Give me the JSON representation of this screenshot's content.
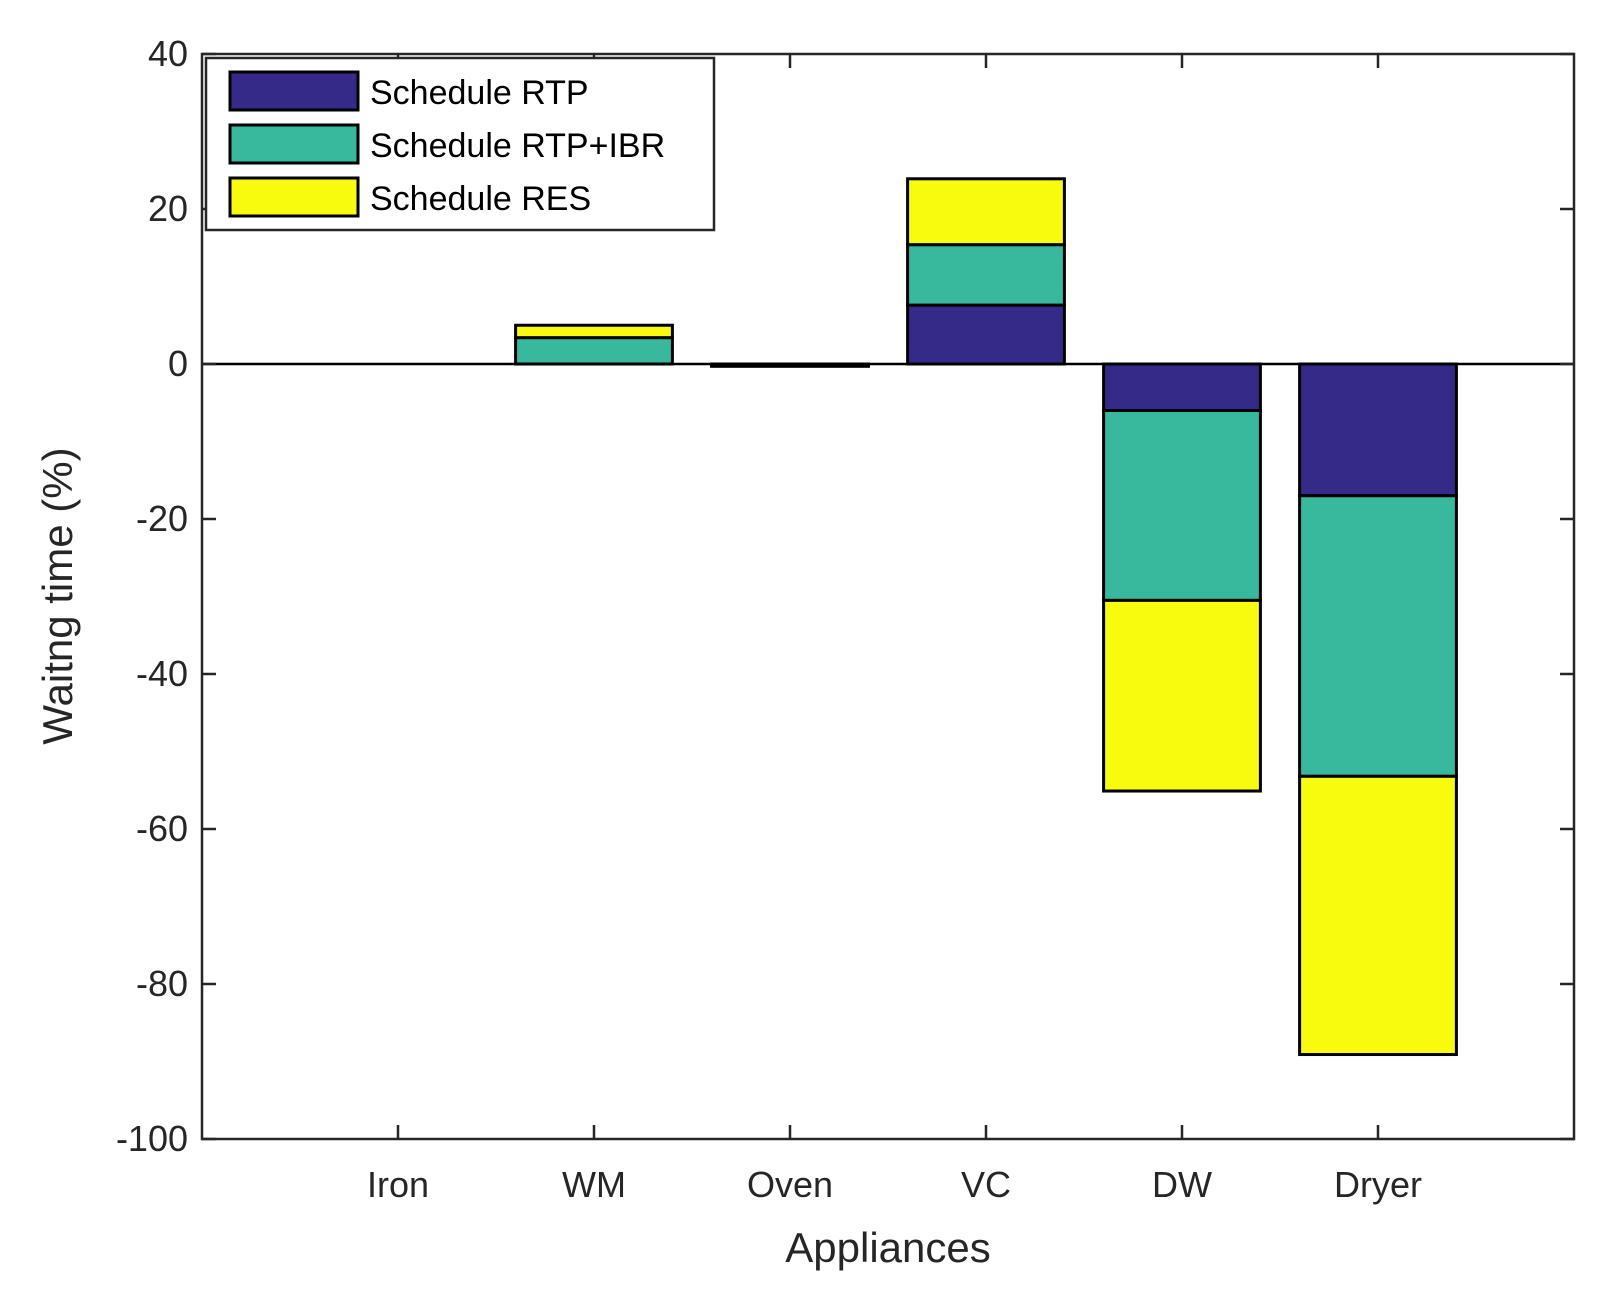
{
  "chart_data": {
    "type": "bar",
    "stacked": true,
    "title": "",
    "xlabel": "Appliances",
    "ylabel": "Waitng time (%)",
    "ylim": [
      -100,
      40
    ],
    "yticks": [
      40,
      20,
      0,
      -20,
      -40,
      -60,
      -80,
      -100
    ],
    "ytick_labels": [
      "40",
      "20",
      "0",
      "-20",
      "-40",
      "-60",
      "-80",
      "-100"
    ],
    "grid": false,
    "legend_position": "top-left",
    "categories": [
      "Iron",
      "WM",
      "Oven",
      "VC",
      "DW",
      "Dryer"
    ],
    "series": [
      {
        "name": "Schedule RTP",
        "color": "#352a87",
        "values": [
          0,
          0,
          -0.1,
          7.6,
          -6.0,
          -17.0
        ]
      },
      {
        "name": "Schedule RTP+IBR",
        "color": "#38b99e",
        "values": [
          0,
          3.4,
          -0.1,
          7.8,
          -24.5,
          -36.2
        ]
      },
      {
        "name": "Schedule RES",
        "color": "#f9fb0e",
        "values": [
          0,
          1.6,
          -0.1,
          8.5,
          -24.6,
          -35.9
        ]
      }
    ]
  }
}
